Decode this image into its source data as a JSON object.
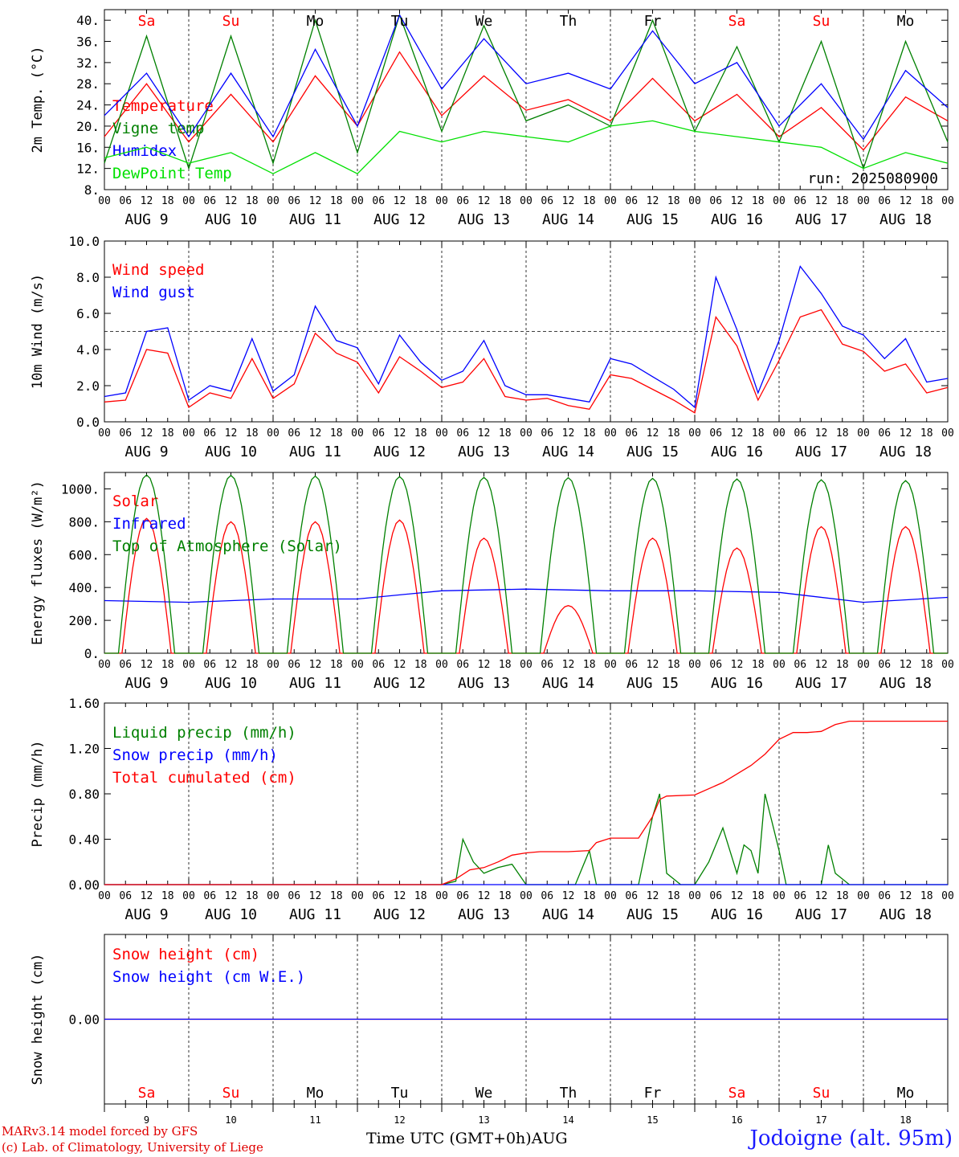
{
  "station": "Jodoigne (alt. 95m)",
  "run_label": "run: 2025080900",
  "footer": {
    "model": "MARv3.14 model forced by GFS",
    "copyright": "(c) Lab. of Climatology, University of Liege"
  },
  "bottom_xlabel": "Time UTC (GMT+0h)",
  "bottom_month": "AUG",
  "weekdays": [
    "Sa",
    "Su",
    "Mo",
    "Tu",
    "We",
    "Th",
    "Fr",
    "Sa",
    "Su",
    "Mo"
  ],
  "weekend_flags": [
    true,
    true,
    false,
    false,
    false,
    false,
    false,
    true,
    true,
    false
  ],
  "day_labels": [
    "AUG  9",
    "AUG 10",
    "AUG 11",
    "AUG 12",
    "AUG 13",
    "AUG 14",
    "AUG 15",
    "AUG 16",
    "AUG 17",
    "AUG 18"
  ],
  "day_numbers": [
    "9",
    "10",
    "11",
    "12",
    "13",
    "14",
    "15",
    "16",
    "17",
    "18"
  ],
  "hour_ticks": [
    "00",
    "06",
    "12",
    "18"
  ],
  "colors": {
    "red": "#ff0000",
    "green": "#008000",
    "blue": "#0000ff",
    "lightgreen": "#00e000",
    "black": "#000000"
  },
  "chart_data": [
    {
      "type": "line",
      "ylabel": "2m Temp. (°C)",
      "ylim": [
        8,
        42
      ],
      "yticks": [
        8,
        12,
        16,
        20,
        24,
        28,
        32,
        36,
        40
      ],
      "ytick_labels": [
        "8.",
        "12.",
        "16.",
        "20.",
        "24.",
        "28.",
        "32.",
        "36.",
        "40."
      ],
      "x_unit": "hours since AUG 9 00 UTC",
      "series": [
        {
          "name": "Temperature",
          "color": "#ff0000",
          "x": [
            0,
            12,
            24,
            36,
            48,
            60,
            72,
            84,
            96,
            108,
            120,
            132,
            144,
            156,
            168,
            180,
            192,
            204,
            216,
            228,
            240
          ],
          "y": [
            18,
            28,
            17,
            26,
            17,
            29.5,
            20,
            34,
            22,
            29.5,
            23,
            25,
            21,
            29,
            21,
            26,
            18,
            23.5,
            15.5,
            25.5,
            21
          ]
        },
        {
          "name": "Vigne temp",
          "color": "#008000",
          "x": [
            0,
            12,
            24,
            36,
            48,
            60,
            72,
            84,
            96,
            108,
            120,
            132,
            144,
            156,
            168,
            180,
            192,
            204,
            216,
            228,
            240
          ],
          "y": [
            13,
            37,
            12,
            37,
            13,
            40,
            15,
            41,
            19,
            39,
            21,
            24,
            20,
            40,
            19,
            35,
            17,
            36,
            12,
            36,
            17
          ]
        },
        {
          "name": "Humidex",
          "color": "#0000ff",
          "x": [
            0,
            12,
            24,
            36,
            48,
            60,
            72,
            84,
            96,
            108,
            120,
            132,
            144,
            156,
            168,
            180,
            192,
            204,
            216,
            228,
            240
          ],
          "y": [
            22,
            30,
            18,
            30,
            18,
            34.5,
            20,
            41,
            27,
            36.5,
            28,
            30,
            27,
            38,
            28,
            32,
            20,
            28,
            17.5,
            30.5,
            23.5
          ]
        },
        {
          "name": "DewPoint Temp",
          "color": "#00e000",
          "x": [
            0,
            12,
            24,
            36,
            48,
            60,
            72,
            84,
            96,
            108,
            120,
            132,
            144,
            156,
            168,
            180,
            192,
            204,
            216,
            228,
            240
          ],
          "y": [
            14,
            16,
            13,
            15,
            11,
            15,
            11,
            19,
            17,
            19,
            18,
            17,
            20,
            21,
            19,
            18,
            17,
            16,
            12,
            15,
            13
          ]
        }
      ]
    },
    {
      "type": "line",
      "ylabel": "10m Wind (m/s)",
      "ylim": [
        0,
        10
      ],
      "yticks": [
        0,
        2,
        4,
        6,
        8,
        10
      ],
      "ytick_labels": [
        "0.0",
        "2.0",
        "4.0",
        "6.0",
        "8.0",
        "10.0"
      ],
      "reference_line": 5,
      "series": [
        {
          "name": "Wind speed",
          "color": "#ff0000",
          "x": [
            0,
            6,
            12,
            18,
            24,
            30,
            36,
            42,
            48,
            54,
            60,
            66,
            72,
            78,
            84,
            90,
            96,
            102,
            108,
            114,
            120,
            126,
            132,
            138,
            144,
            150,
            156,
            162,
            168,
            174,
            180,
            186,
            192,
            198,
            204,
            210,
            216,
            222,
            228,
            234,
            240
          ],
          "y": [
            1.1,
            1.2,
            4,
            3.8,
            0.8,
            1.6,
            1.3,
            3.5,
            1.3,
            2.1,
            4.9,
            3.8,
            3.3,
            1.6,
            3.6,
            2.8,
            1.9,
            2.2,
            3.5,
            1.4,
            1.2,
            1.3,
            0.9,
            0.7,
            2.6,
            2.4,
            1.8,
            1.2,
            0.5,
            5.8,
            4.2,
            1.2,
            3.4,
            5.8,
            6.2,
            4.3,
            3.9,
            2.8,
            3.2,
            1.6,
            1.9
          ]
        },
        {
          "name": "Wind gust",
          "color": "#0000ff",
          "x": [
            0,
            6,
            12,
            18,
            24,
            30,
            36,
            42,
            48,
            54,
            60,
            66,
            72,
            78,
            84,
            90,
            96,
            102,
            108,
            114,
            120,
            126,
            132,
            138,
            144,
            150,
            156,
            162,
            168,
            174,
            180,
            186,
            192,
            198,
            204,
            210,
            216,
            222,
            228,
            234,
            240
          ],
          "y": [
            1.4,
            1.6,
            5,
            5.2,
            1.2,
            2,
            1.7,
            4.6,
            1.7,
            2.6,
            6.4,
            4.5,
            4.1,
            2.1,
            4.8,
            3.3,
            2.3,
            2.8,
            4.5,
            2,
            1.5,
            1.5,
            1.3,
            1.1,
            3.5,
            3.2,
            2.5,
            1.8,
            0.8,
            8,
            5.1,
            1.6,
            4.5,
            8.6,
            7.1,
            5.3,
            4.8,
            3.5,
            4.6,
            2.2,
            2.4
          ]
        }
      ]
    },
    {
      "type": "line",
      "ylabel": "Energy fluxes (W/m²)",
      "ylim": [
        0,
        1100
      ],
      "yticks": [
        0,
        200,
        400,
        600,
        800,
        1000
      ],
      "ytick_labels": [
        "0.",
        "200.",
        "400.",
        "600.",
        "800.",
        "1000."
      ],
      "series": [
        {
          "name": "Solar",
          "color": "#ff0000",
          "peaks": [
            820,
            800,
            800,
            810,
            700,
            290,
            700,
            640,
            770,
            770
          ]
        },
        {
          "name": "Infrared",
          "color": "#0000ff",
          "x": [
            0,
            24,
            48,
            72,
            96,
            120,
            144,
            168,
            192,
            216,
            240
          ],
          "y": [
            320,
            310,
            330,
            330,
            380,
            390,
            380,
            380,
            370,
            310,
            340
          ]
        },
        {
          "name": "Top of Atmosphere (Solar)",
          "color": "#008000",
          "peaks": [
            1085,
            1082,
            1078,
            1075,
            1070,
            1068,
            1064,
            1060,
            1055,
            1050
          ]
        }
      ]
    },
    {
      "type": "line",
      "ylabel": "Precip (mm/h)",
      "ylim": [
        0,
        1.6
      ],
      "yticks": [
        0,
        0.4,
        0.8,
        1.2,
        1.6
      ],
      "ytick_labels": [
        "0.00",
        "0.40",
        "0.80",
        "1.20",
        "1.60"
      ],
      "series": [
        {
          "name": "Liquid precip (mm/h)",
          "color": "#008000",
          "x": [
            0,
            96,
            100,
            102,
            105,
            108,
            112,
            116,
            120,
            124,
            128,
            134,
            138,
            140,
            144,
            148,
            152,
            156,
            158,
            160,
            164,
            168,
            172,
            176,
            180,
            182,
            184,
            186,
            188,
            192,
            194,
            196,
            200,
            204,
            206,
            208,
            212,
            240
          ],
          "y": [
            0,
            0,
            0.03,
            0.4,
            0.2,
            0.1,
            0.15,
            0.18,
            0,
            0,
            0,
            0,
            0.3,
            0,
            0,
            0,
            0,
            0.6,
            0.8,
            0.1,
            0,
            0,
            0.2,
            0.5,
            0.1,
            0.35,
            0.3,
            0.1,
            0.8,
            0.3,
            0,
            0,
            0,
            0,
            0.35,
            0.1,
            0,
            0
          ]
        },
        {
          "name": "Snow precip (mm/h)",
          "color": "#0000ff",
          "x": [
            0,
            240
          ],
          "y": [
            0,
            0
          ]
        },
        {
          "name": "Total cumulated (cm)",
          "color": "#ff0000",
          "x": [
            0,
            96,
            100,
            104,
            108,
            112,
            116,
            120,
            124,
            132,
            138,
            140,
            144,
            152,
            156,
            158,
            160,
            168,
            176,
            184,
            188,
            192,
            196,
            200,
            204,
            208,
            212,
            240
          ],
          "y": [
            0,
            0,
            0.05,
            0.13,
            0.15,
            0.2,
            0.26,
            0.28,
            0.29,
            0.29,
            0.3,
            0.37,
            0.41,
            0.41,
            0.6,
            0.75,
            0.78,
            0.79,
            0.9,
            1.05,
            1.15,
            1.28,
            1.34,
            1.34,
            1.35,
            1.41,
            1.44,
            1.44
          ]
        }
      ]
    },
    {
      "type": "line",
      "ylabel": "Snow height (cm)",
      "ylim": [
        -1,
        1
      ],
      "yticks": [
        0
      ],
      "ytick_labels": [
        "0.00"
      ],
      "series": [
        {
          "name": "Snow height (cm)",
          "color": "#ff0000",
          "x": [
            0,
            240
          ],
          "y": [
            0,
            0
          ]
        },
        {
          "name": "Snow height (cm W.E.)",
          "color": "#0000ff",
          "x": [
            0,
            240
          ],
          "y": [
            0,
            0
          ]
        }
      ]
    }
  ]
}
